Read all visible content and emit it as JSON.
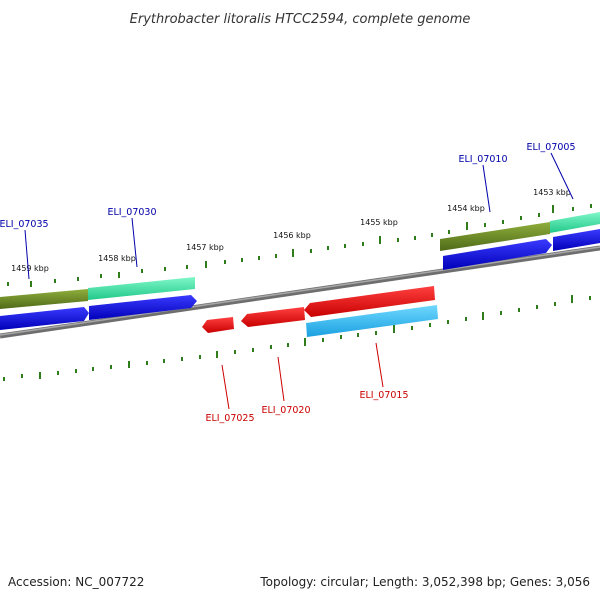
{
  "title": "Erythrobacter litoralis HTCC2594, complete genome",
  "footer": {
    "accession": "Accession: NC_007722",
    "summary": "Topology: circular; Length: 3,052,398 bp; Genes: 3,056"
  },
  "ticks": [
    {
      "label": "1459 kbp"
    },
    {
      "label": "1458 kbp"
    },
    {
      "label": "1457 kbp"
    },
    {
      "label": "1456 kbp"
    },
    {
      "label": "1455 kbp"
    },
    {
      "label": "1454 kbp"
    },
    {
      "label": "1453 kbp"
    }
  ],
  "genes": [
    {
      "label": "ELI_07035",
      "strand": "forward",
      "color": "#0000aa"
    },
    {
      "label": "ELI_07030",
      "strand": "forward",
      "color": "#0000aa"
    },
    {
      "label": "ELI_07010",
      "strand": "forward",
      "color": "#0000aa"
    },
    {
      "label": "ELI_07005",
      "strand": "forward",
      "color": "#0000aa"
    },
    {
      "label": "ELI_07025",
      "strand": "reverse",
      "color": "#cc0000"
    },
    {
      "label": "ELI_07020",
      "strand": "reverse",
      "color": "#cc0000"
    },
    {
      "label": "ELI_07015",
      "strand": "reverse",
      "color": "#cc0000"
    }
  ],
  "colors": {
    "backbone": "#808080",
    "tick": "#2e7d1a",
    "forward_cds": "#0000ee",
    "reverse_cds": "#ee0000",
    "olive_feature": "#6b8e23",
    "aqua_feature": "#40e0a0",
    "cyan_feature": "#20c0f0"
  }
}
